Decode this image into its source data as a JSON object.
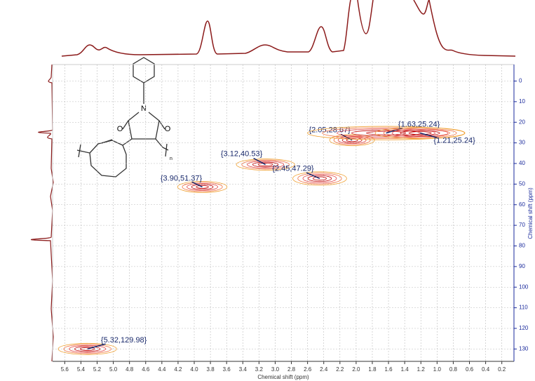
{
  "chart_data": {
    "type": "scatter",
    "x_label": "Chemical shift (ppm)",
    "y_label": "Chemical shift (ppm)",
    "x": [
      3.9,
      3.12,
      2.45,
      2.05,
      1.63,
      1.21,
      5.32
    ],
    "values": [
      51.37,
      40.53,
      47.29,
      28.67,
      25.24,
      25.24,
      129.98
    ],
    "value_labels": [
      "{3.90,51.37}",
      "{3.12,40.53}",
      "{2.45,47.29}",
      "{2.05,28.67}",
      "{1.63,25.24}",
      "{1.21,25.24}",
      "{5.32,129.98}"
    ],
    "color": "#c00000",
    "xlim": [
      5.75,
      0.05
    ],
    "ylim": [
      -8,
      136
    ],
    "xticks": [
      5.6,
      5.4,
      5.2,
      {
        "value": 5,
        "label": "5.0"
      },
      4.8,
      4.6,
      4.4,
      4.2,
      {
        "value": 4,
        "label": "4.0"
      },
      3.8,
      3.6,
      3.4,
      3.2,
      {
        "value": 3,
        "label": "3.0"
      },
      2.8,
      2.6,
      2.4,
      2.2,
      {
        "value": 2,
        "label": "2.0"
      },
      1.8,
      1.6,
      1.4,
      1.2,
      {
        "value": 1,
        "label": "1.0"
      },
      0.8,
      0.6,
      0.4,
      0.2
    ],
    "yticks": [
      0,
      10,
      20,
      30,
      40,
      50,
      60,
      70,
      80,
      90,
      100,
      110,
      120,
      130
    ],
    "grid": true,
    "structure": {
      "atoms": [
        "N",
        "O",
        "O",
        "n"
      ]
    }
  }
}
